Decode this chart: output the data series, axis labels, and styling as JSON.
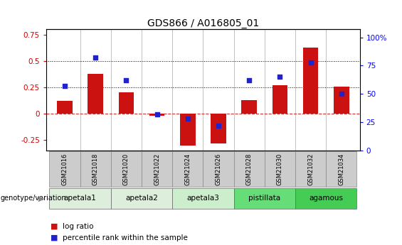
{
  "title": "GDS866 / A016805_01",
  "samples": [
    "GSM21016",
    "GSM21018",
    "GSM21020",
    "GSM21022",
    "GSM21024",
    "GSM21026",
    "GSM21028",
    "GSM21030",
    "GSM21032",
    "GSM21034"
  ],
  "log_ratio": [
    0.12,
    0.38,
    0.2,
    -0.02,
    -0.3,
    -0.28,
    0.13,
    0.27,
    0.63,
    0.26
  ],
  "percentile_rank": [
    57,
    82,
    62,
    32,
    28,
    22,
    62,
    65,
    78,
    50
  ],
  "groups": [
    {
      "label": "apetala1",
      "indices": [
        0,
        1
      ],
      "color": "#ddeedd"
    },
    {
      "label": "apetala2",
      "indices": [
        2,
        3
      ],
      "color": "#ddeedd"
    },
    {
      "label": "apetala3",
      "indices": [
        4,
        5
      ],
      "color": "#cceecc"
    },
    {
      "label": "pistillata",
      "indices": [
        6,
        7
      ],
      "color": "#66dd77"
    },
    {
      "label": "agamous",
      "indices": [
        8,
        9
      ],
      "color": "#44cc55"
    }
  ],
  "bar_color": "#cc1111",
  "dot_color": "#2222cc",
  "ylim_left": [
    -0.35,
    0.8
  ],
  "ylim_right": [
    0,
    107
  ],
  "yticks_left": [
    -0.25,
    0.0,
    0.25,
    0.5,
    0.75
  ],
  "ytick_labels_left": [
    "-0.25",
    "0",
    "0.25",
    "0.5",
    "0.75"
  ],
  "yticks_right": [
    0,
    25,
    50,
    75,
    100
  ],
  "ytick_labels_right": [
    "0",
    "25",
    "50",
    "75",
    "100%"
  ],
  "hlines": [
    0.25,
    0.5
  ],
  "legend_items": [
    "log ratio",
    "percentile rank within the sample"
  ],
  "genotype_label": "genotype/variation"
}
